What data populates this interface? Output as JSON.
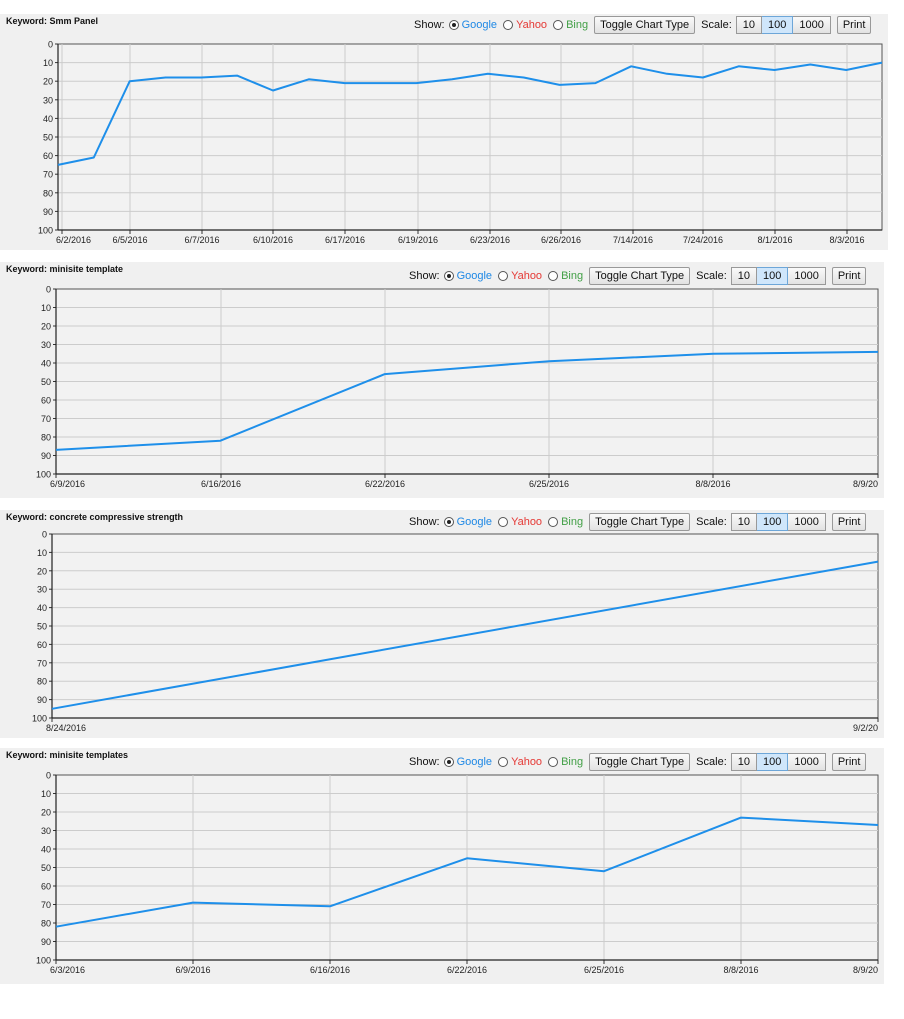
{
  "controls": {
    "show_label": "Show:",
    "google_label": "Google",
    "yahoo_label": "Yahoo",
    "bing_label": "Bing",
    "toggle_label": "Toggle Chart Type",
    "scale_label": "Scale:",
    "scale_options": [
      "10",
      "100",
      "1000"
    ],
    "scale_selected": "100",
    "print_label": "Print",
    "selected_engine": "Google"
  },
  "colors": {
    "google": "#1e88e5",
    "yahoo": "#e53935",
    "bing": "#43a047",
    "line": "#1e8fea",
    "panel_bg": "#f0f0f0",
    "plot_bg": "#f2f2f2",
    "grid": "#cccccc"
  },
  "panels": [
    {
      "keyword": "Keyword: Smm Panel"
    },
    {
      "keyword": "Keyword: minisite template"
    },
    {
      "keyword": "Keyword: concrete compressive strength"
    },
    {
      "keyword": "Keyword: minisite templates"
    }
  ],
  "chart_data": [
    {
      "type": "line",
      "title": "Keyword: Smm Panel",
      "ylim": [
        100,
        0
      ],
      "y_ticks": [
        0,
        10,
        20,
        30,
        40,
        50,
        60,
        70,
        80,
        90,
        100
      ],
      "x_tick_labels": [
        "6/2/2016",
        "6/5/2016",
        "6/7/2016",
        "6/10/2016",
        "6/17/2016",
        "6/19/2016",
        "6/23/2016",
        "6/26/2016",
        "7/14/2016",
        "7/24/2016",
        "8/1/2016",
        "8/3/2016"
      ],
      "series": [
        {
          "values": [
            65,
            61,
            20,
            18,
            18,
            17,
            25,
            19,
            21,
            21,
            21,
            19,
            16,
            18,
            22,
            21,
            12,
            16,
            18,
            12,
            14,
            11,
            14,
            10
          ]
        }
      ],
      "grid": true
    },
    {
      "type": "line",
      "title": "Keyword: minisite template",
      "ylim": [
        100,
        0
      ],
      "y_ticks": [
        0,
        10,
        20,
        30,
        40,
        50,
        60,
        70,
        80,
        90,
        100
      ],
      "x_tick_labels": [
        "6/9/2016",
        "6/16/2016",
        "6/22/2016",
        "6/25/2016",
        "8/8/2016",
        "8/9/20"
      ],
      "series": [
        {
          "values": [
            87,
            82,
            46,
            39,
            35,
            34
          ]
        }
      ],
      "grid": true
    },
    {
      "type": "line",
      "title": "Keyword: concrete compressive strength",
      "ylim": [
        100,
        0
      ],
      "y_ticks": [
        0,
        10,
        20,
        30,
        40,
        50,
        60,
        70,
        80,
        90,
        100
      ],
      "x_tick_labels": [
        "8/24/2016",
        "9/2/20"
      ],
      "series": [
        {
          "values": [
            95,
            15
          ]
        }
      ],
      "grid": true
    },
    {
      "type": "line",
      "title": "Keyword: minisite templates",
      "ylim": [
        100,
        0
      ],
      "y_ticks": [
        0,
        10,
        20,
        30,
        40,
        50,
        60,
        70,
        80,
        90,
        100
      ],
      "x_tick_labels": [
        "6/3/2016",
        "6/9/2016",
        "6/16/2016",
        "6/22/2016",
        "6/25/2016",
        "8/8/2016",
        "8/9/20"
      ],
      "series": [
        {
          "values": [
            82,
            69,
            71,
            45,
            52,
            23,
            27
          ]
        }
      ],
      "grid": true
    }
  ]
}
